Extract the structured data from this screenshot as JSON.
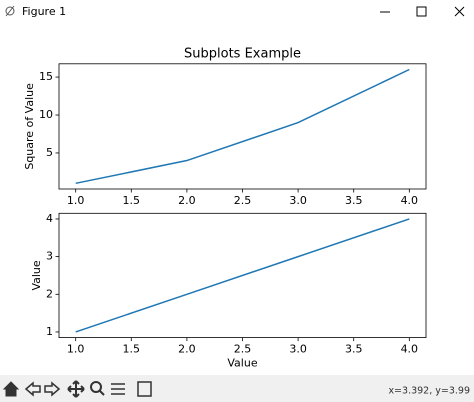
{
  "window": {
    "title": "Figure 1",
    "status": "x=3.392, y=3.99"
  },
  "chart_data": [
    {
      "type": "line",
      "title": "Subplots Example",
      "ylabel": "Square of Value",
      "x": [
        1,
        2,
        3,
        4
      ],
      "values": [
        1,
        4,
        9,
        16
      ],
      "color": "#1f77b4",
      "xlim": [
        0.85,
        4.15
      ],
      "ylim": [
        0.25,
        16.75
      ],
      "xticks": [
        {
          "value": 1,
          "label": "1.0"
        },
        {
          "value": 1.5,
          "label": "1.5"
        },
        {
          "value": 2,
          "label": "2.0"
        },
        {
          "value": 2.5,
          "label": "2.5"
        },
        {
          "value": 3,
          "label": "3.0"
        },
        {
          "value": 3.5,
          "label": "3.5"
        },
        {
          "value": 4,
          "label": "4.0"
        }
      ],
      "yticks": [
        5,
        10,
        15
      ]
    },
    {
      "type": "line",
      "xlabel": "Value",
      "ylabel": "Value",
      "x": [
        1,
        2,
        3,
        4
      ],
      "values": [
        1,
        2,
        3,
        4
      ],
      "color": "#1f77b4",
      "xlim": [
        0.85,
        4.15
      ],
      "ylim": [
        0.85,
        4.15
      ],
      "xticks": [
        {
          "value": 1,
          "label": "1.0"
        },
        {
          "value": 1.5,
          "label": "1.5"
        },
        {
          "value": 2,
          "label": "2.0"
        },
        {
          "value": 2.5,
          "label": "2.5"
        },
        {
          "value": 3,
          "label": "3.0"
        },
        {
          "value": 3.5,
          "label": "3.5"
        },
        {
          "value": 4,
          "label": "4.0"
        }
      ],
      "yticks": [
        1,
        2,
        3,
        4
      ]
    }
  ]
}
